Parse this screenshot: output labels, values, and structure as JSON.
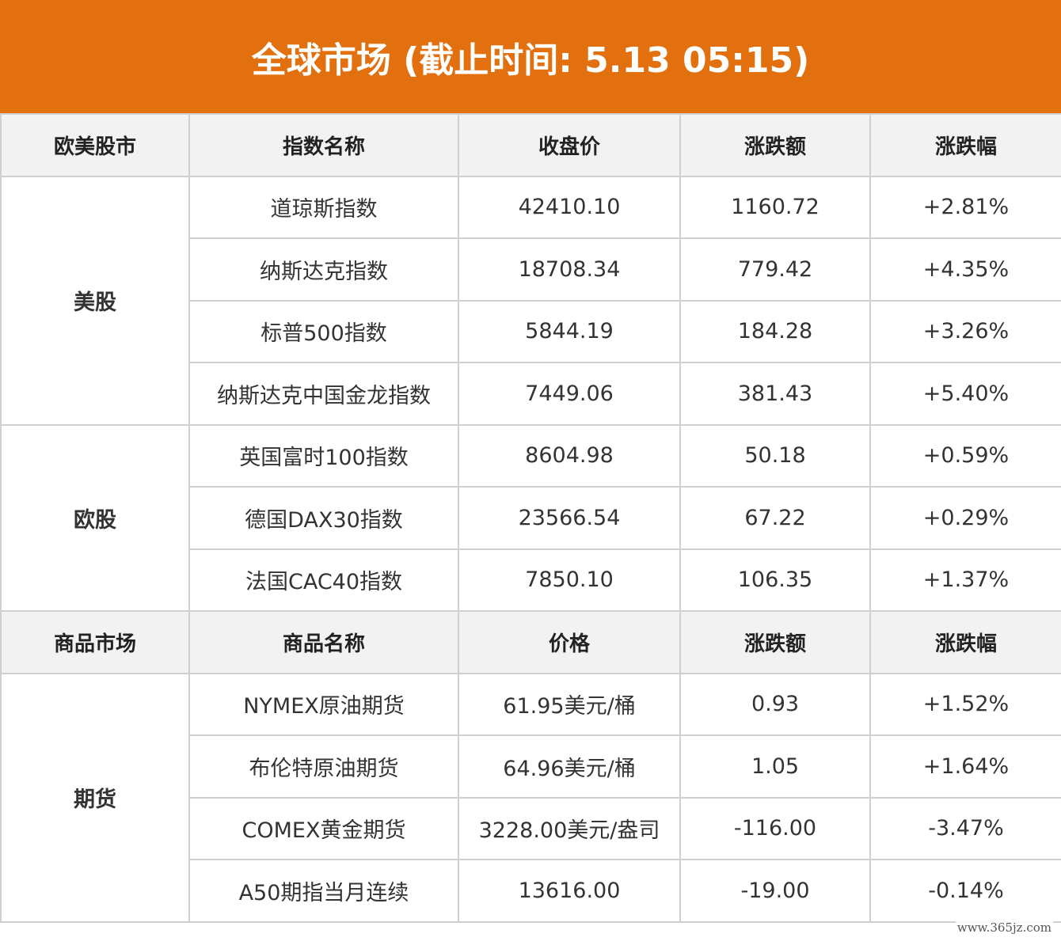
{
  "title": "全球市场 (截止时间: 5.13 05:15)",
  "colors": {
    "banner": "#e2700f",
    "up": "#e0242b",
    "down": "#2e9b3c",
    "header_bg": "#f2f2f2"
  },
  "equities": {
    "headers": [
      "欧美股市",
      "指数名称",
      "收盘价",
      "涨跌额",
      "涨跌幅"
    ],
    "groups": [
      {
        "name": "美股",
        "rows": [
          {
            "name": "道琼斯指数",
            "close": "42410.10",
            "change": "1160.72",
            "pct": "+2.81%"
          },
          {
            "name": "纳斯达克指数",
            "close": "18708.34",
            "change": "779.42",
            "pct": "+4.35%"
          },
          {
            "name": "标普500指数",
            "close": "5844.19",
            "change": "184.28",
            "pct": "+3.26%"
          },
          {
            "name": "纳斯达克中国金龙指数",
            "close": "7449.06",
            "change": "381.43",
            "pct": "+5.40%"
          }
        ]
      },
      {
        "name": "欧股",
        "rows": [
          {
            "name": "英国富时100指数",
            "close": "8604.98",
            "change": "50.18",
            "pct": "+0.59%"
          },
          {
            "name": "德国DAX30指数",
            "close": "23566.54",
            "change": "67.22",
            "pct": "+0.29%"
          },
          {
            "name": "法国CAC40指数",
            "close": "7850.10",
            "change": "106.35",
            "pct": "+1.37%"
          }
        ]
      }
    ]
  },
  "commodities": {
    "headers": [
      "商品市场",
      "商品名称",
      "价格",
      "涨跌额",
      "涨跌幅"
    ],
    "groups": [
      {
        "name": "期货",
        "rows": [
          {
            "name": "NYMEX原油期货",
            "close": "61.95美元/桶",
            "change": "0.93",
            "pct": "+1.52%"
          },
          {
            "name": "布伦特原油期货",
            "close": "64.96美元/桶",
            "change": "1.05",
            "pct": "+1.64%"
          },
          {
            "name": "COMEX黄金期货",
            "close": "3228.00美元/盎司",
            "change": "-116.00",
            "pct": "-3.47%"
          },
          {
            "name": "A50期指当月连续",
            "close": "13616.00",
            "change": "-19.00",
            "pct": "-0.14%"
          }
        ]
      }
    ]
  },
  "watermark": "www.365jz.com"
}
